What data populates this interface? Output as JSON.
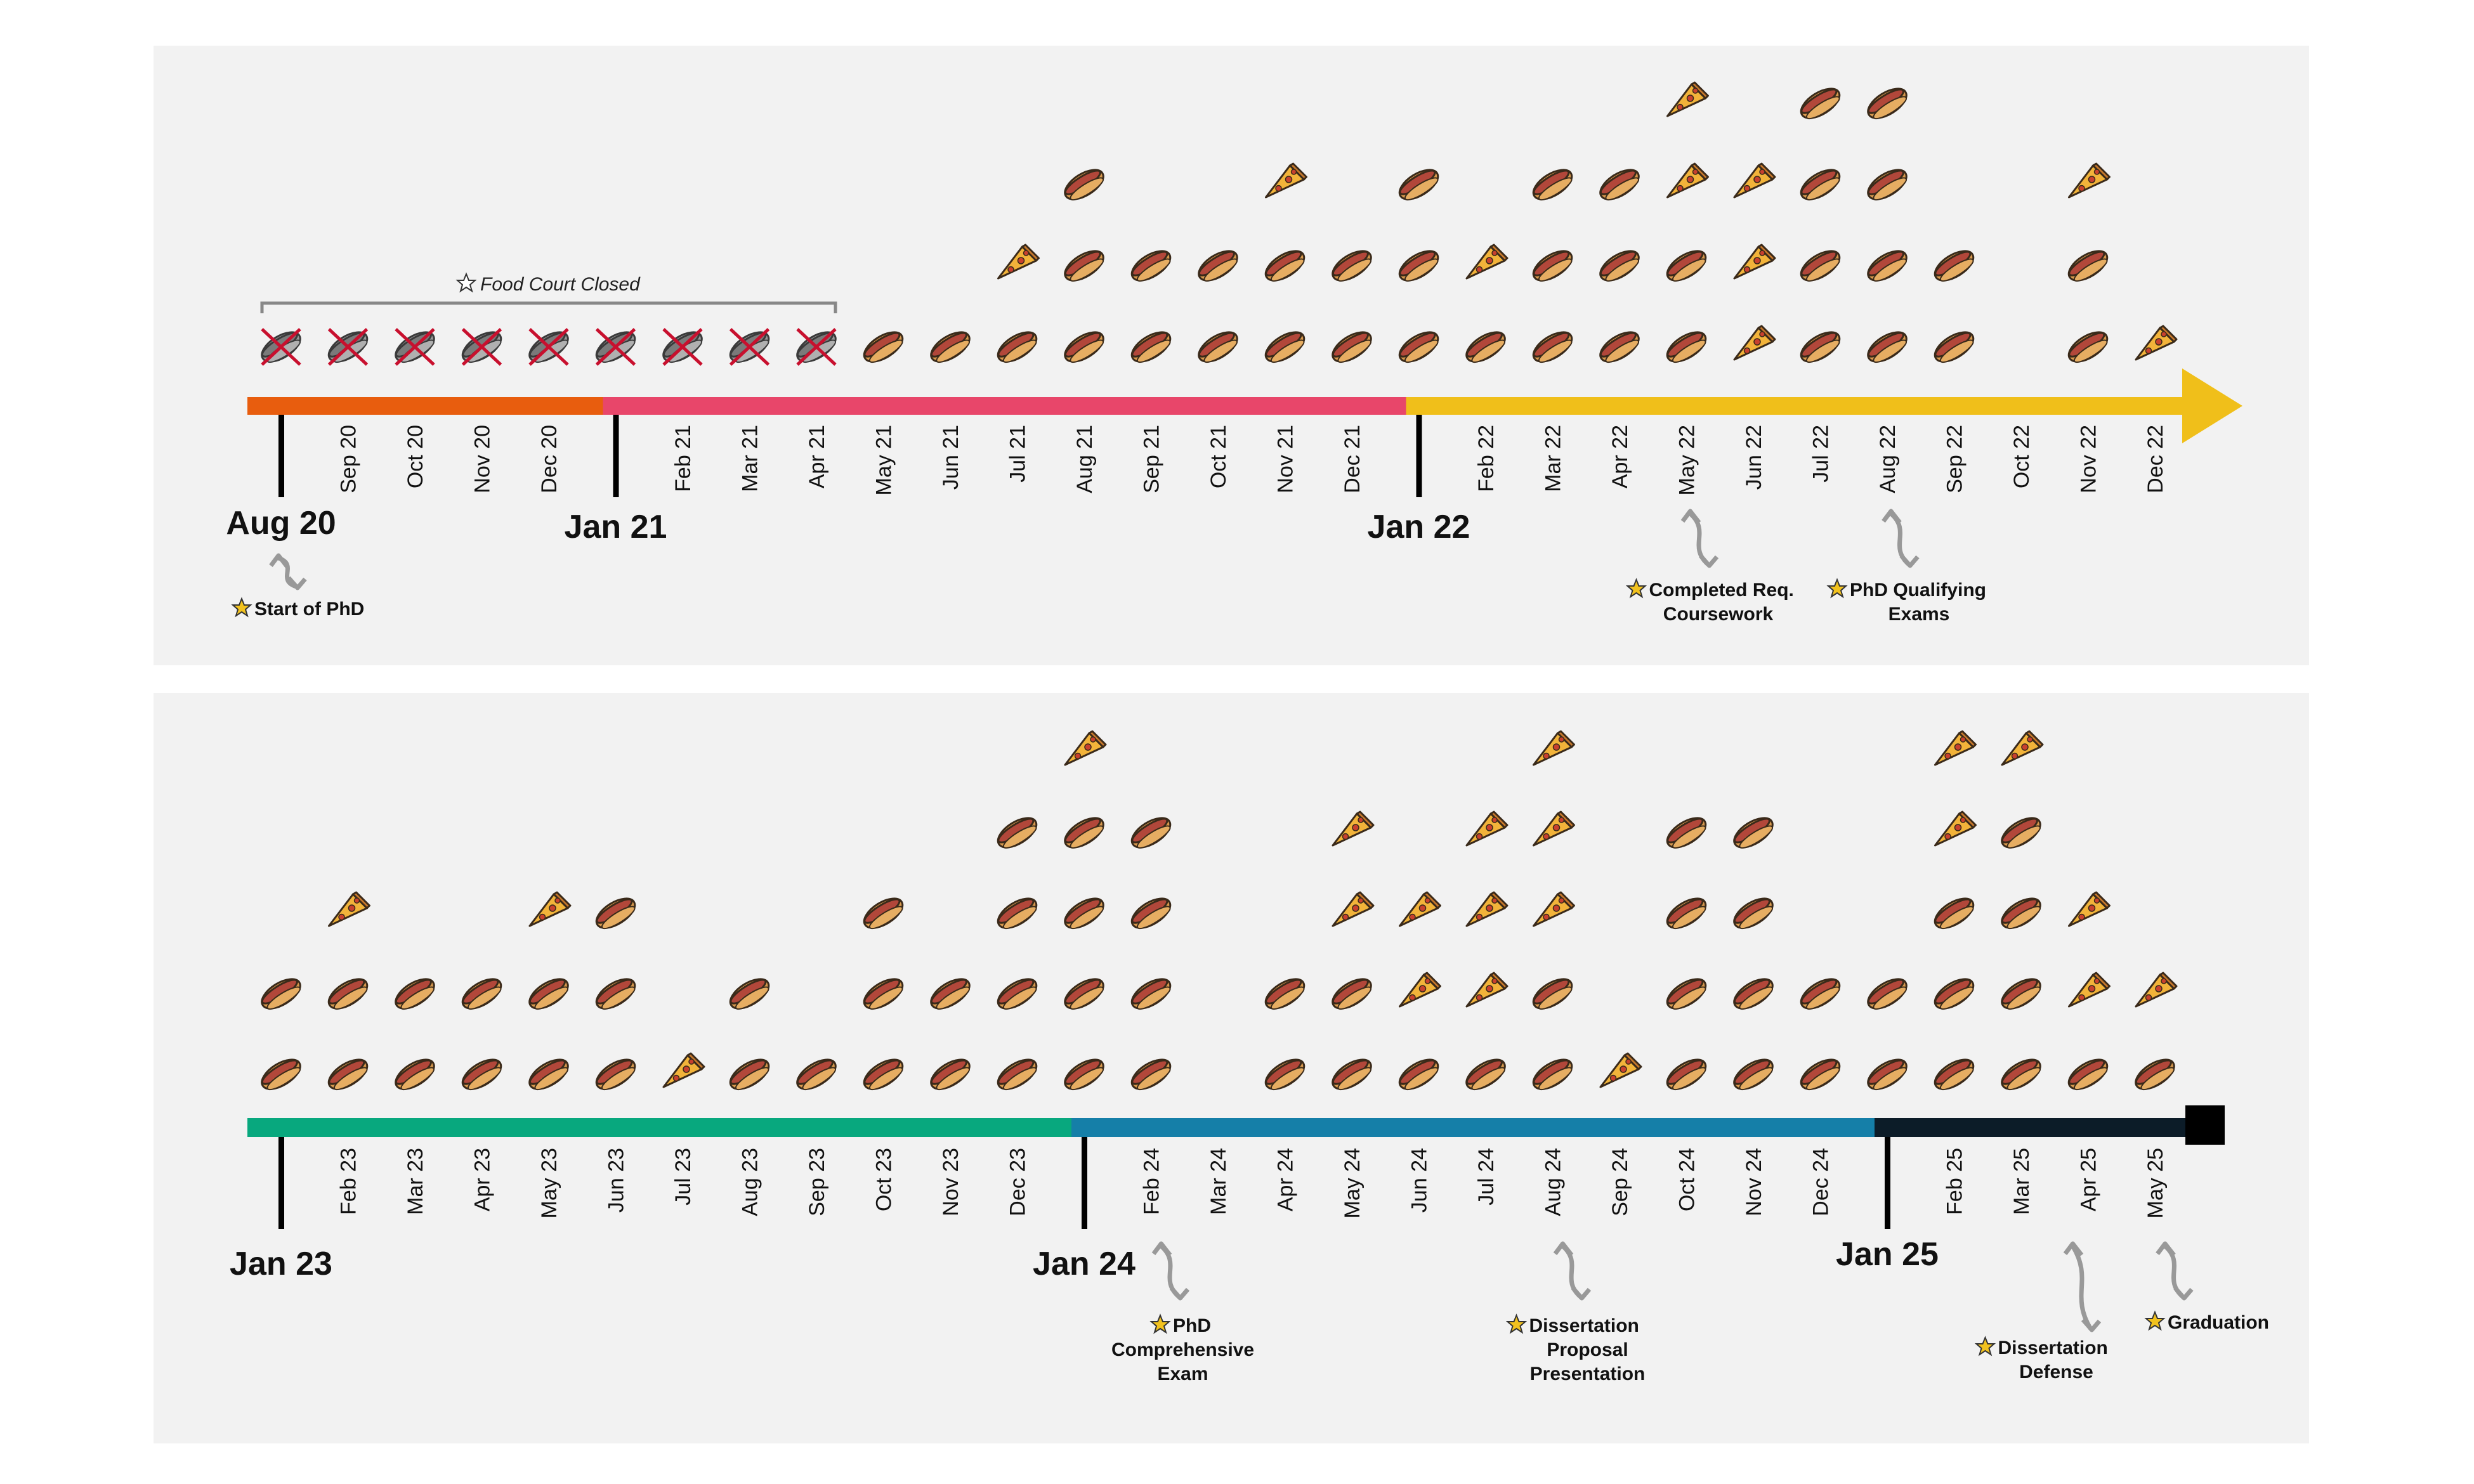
{
  "chart_data": [
    {
      "type": "timeline",
      "panel": "top",
      "months": [
        "Aug 20",
        "Sep 20",
        "Oct 20",
        "Nov 20",
        "Dec 20",
        "Jan 21",
        "Feb 21",
        "Mar 21",
        "Apr 21",
        "May 21",
        "Jun 21",
        "Jul 21",
        "Aug 21",
        "Sep 21",
        "Oct 21",
        "Nov 21",
        "Dec 21",
        "Jan 22",
        "Feb 22",
        "Mar 22",
        "Apr 22",
        "May 22",
        "Jun 22",
        "Jul 22",
        "Aug 22",
        "Sep 22",
        "Oct 22",
        "Nov 22",
        "Dec 22"
      ],
      "year_labels": [
        {
          "month": "Aug 20",
          "label": "Aug 20"
        },
        {
          "month": "Jan 21",
          "label": "Jan 21"
        },
        {
          "month": "Jan 22",
          "label": "Jan 22"
        }
      ],
      "food": [
        [
          "x"
        ],
        [
          "x"
        ],
        [
          "x"
        ],
        [
          "x"
        ],
        [
          "x"
        ],
        [
          "x"
        ],
        [
          "x"
        ],
        [
          "x"
        ],
        [
          "x"
        ],
        [
          "h"
        ],
        [
          "h"
        ],
        [
          "h",
          "p"
        ],
        [
          "h",
          "h",
          "h"
        ],
        [
          "h",
          "h"
        ],
        [
          "h",
          "h"
        ],
        [
          "h",
          "h",
          "p"
        ],
        [
          "h",
          "h"
        ],
        [
          "h",
          "h",
          "h"
        ],
        [
          "h",
          "p"
        ],
        [
          "h",
          "h",
          "h"
        ],
        [
          "h",
          "h",
          "h"
        ],
        [
          "h",
          "h",
          "p",
          "p"
        ],
        [
          "p",
          "p",
          "p"
        ],
        [
          "h",
          "h",
          "h",
          "h"
        ],
        [
          "h",
          "h",
          "h",
          "h"
        ],
        [
          "h",
          "h"
        ],
        [],
        [
          "h",
          "h",
          "p"
        ],
        [
          "p"
        ]
      ],
      "segments": [
        {
          "from": "Aug 20",
          "to": "Jan 21",
          "color": "#e85d0e"
        },
        {
          "from": "Jan 21",
          "to": "Jan 22",
          "color": "#e8466a"
        },
        {
          "from": "Jan 22",
          "to": "end",
          "color": "#f0bf1a"
        }
      ],
      "bracket": {
        "from": "Aug 20",
        "to": "Apr 21",
        "label": "Food Court Closed"
      },
      "milestones": [
        {
          "month": "Aug 20",
          "label": [
            "Start of PhD"
          ]
        },
        {
          "month": "May 22",
          "label": [
            "Completed Req.",
            "Coursework"
          ]
        },
        {
          "month": "Aug 22",
          "label": [
            "PhD Qualifying",
            "Exams"
          ]
        }
      ]
    },
    {
      "type": "timeline",
      "panel": "bottom",
      "months": [
        "Jan 23",
        "Feb 23",
        "Mar 23",
        "Apr 23",
        "May 23",
        "Jun 23",
        "Jul 23",
        "Aug 23",
        "Sep 23",
        "Oct 23",
        "Nov 23",
        "Dec 23",
        "Jan 24",
        "Feb 24",
        "Mar 24",
        "Apr 24",
        "May 24",
        "Jun 24",
        "Jul 24",
        "Aug 24",
        "Sep 24",
        "Oct 24",
        "Nov 24",
        "Dec 24",
        "Jan 25",
        "Feb 25",
        "Mar 25",
        "Apr 25",
        "May 25"
      ],
      "year_labels": [
        {
          "month": "Jan 23",
          "label": "Jan 23"
        },
        {
          "month": "Jan 24",
          "label": "Jan 24"
        },
        {
          "month": "Jan 25",
          "label": "Jan 25"
        }
      ],
      "food": [
        [
          "h",
          "h"
        ],
        [
          "h",
          "h",
          "p"
        ],
        [
          "h",
          "h"
        ],
        [
          "h",
          "h"
        ],
        [
          "h",
          "h",
          "p"
        ],
        [
          "h",
          "h",
          "h"
        ],
        [
          "p"
        ],
        [
          "h",
          "h"
        ],
        [
          "h"
        ],
        [
          "h",
          "h",
          "h"
        ],
        [
          "h",
          "h"
        ],
        [
          "h",
          "h",
          "h",
          "h"
        ],
        [
          "h",
          "h",
          "h",
          "h",
          "p"
        ],
        [
          "h",
          "h",
          "h",
          "h"
        ],
        [],
        [
          "h",
          "h"
        ],
        [
          "h",
          "h",
          "p",
          "p"
        ],
        [
          "h",
          "p",
          "p"
        ],
        [
          "h",
          "p",
          "p",
          "p"
        ],
        [
          "h",
          "h",
          "p",
          "p",
          "p"
        ],
        [
          "p"
        ],
        [
          "h",
          "h",
          "h",
          "h"
        ],
        [
          "h",
          "h",
          "h",
          "h"
        ],
        [
          "h",
          "h"
        ],
        [
          "h",
          "h"
        ],
        [
          "h",
          "h",
          "h",
          "p",
          "p"
        ],
        [
          "h",
          "h",
          "h",
          "h",
          "p"
        ],
        [
          "h",
          "p",
          "p"
        ],
        [
          "h",
          "p"
        ]
      ],
      "segments": [
        {
          "from": "Jan 23",
          "to": "Jan 24",
          "color": "#08a87e"
        },
        {
          "from": "Jan 24",
          "to": "Jan 25",
          "color": "#157fa8"
        },
        {
          "from": "Jan 25",
          "to": "end",
          "color": "#0c1c28"
        }
      ],
      "milestones": [
        {
          "month": "Feb 24",
          "label": [
            "PhD",
            "Comprehensive",
            "Exam"
          ]
        },
        {
          "month": "Aug 24",
          "label": [
            "Dissertation",
            "Proposal",
            "Presentation"
          ]
        },
        {
          "month": "Apr 25",
          "label": [
            "Dissertation",
            "Defense"
          ]
        },
        {
          "month": "May 25",
          "label": [
            "Graduation"
          ]
        }
      ]
    }
  ],
  "legend_marks": {
    "h": "hot-dog-icon",
    "p": "pizza-slice-icon",
    "x": "crossed-hot-dog-icon"
  }
}
